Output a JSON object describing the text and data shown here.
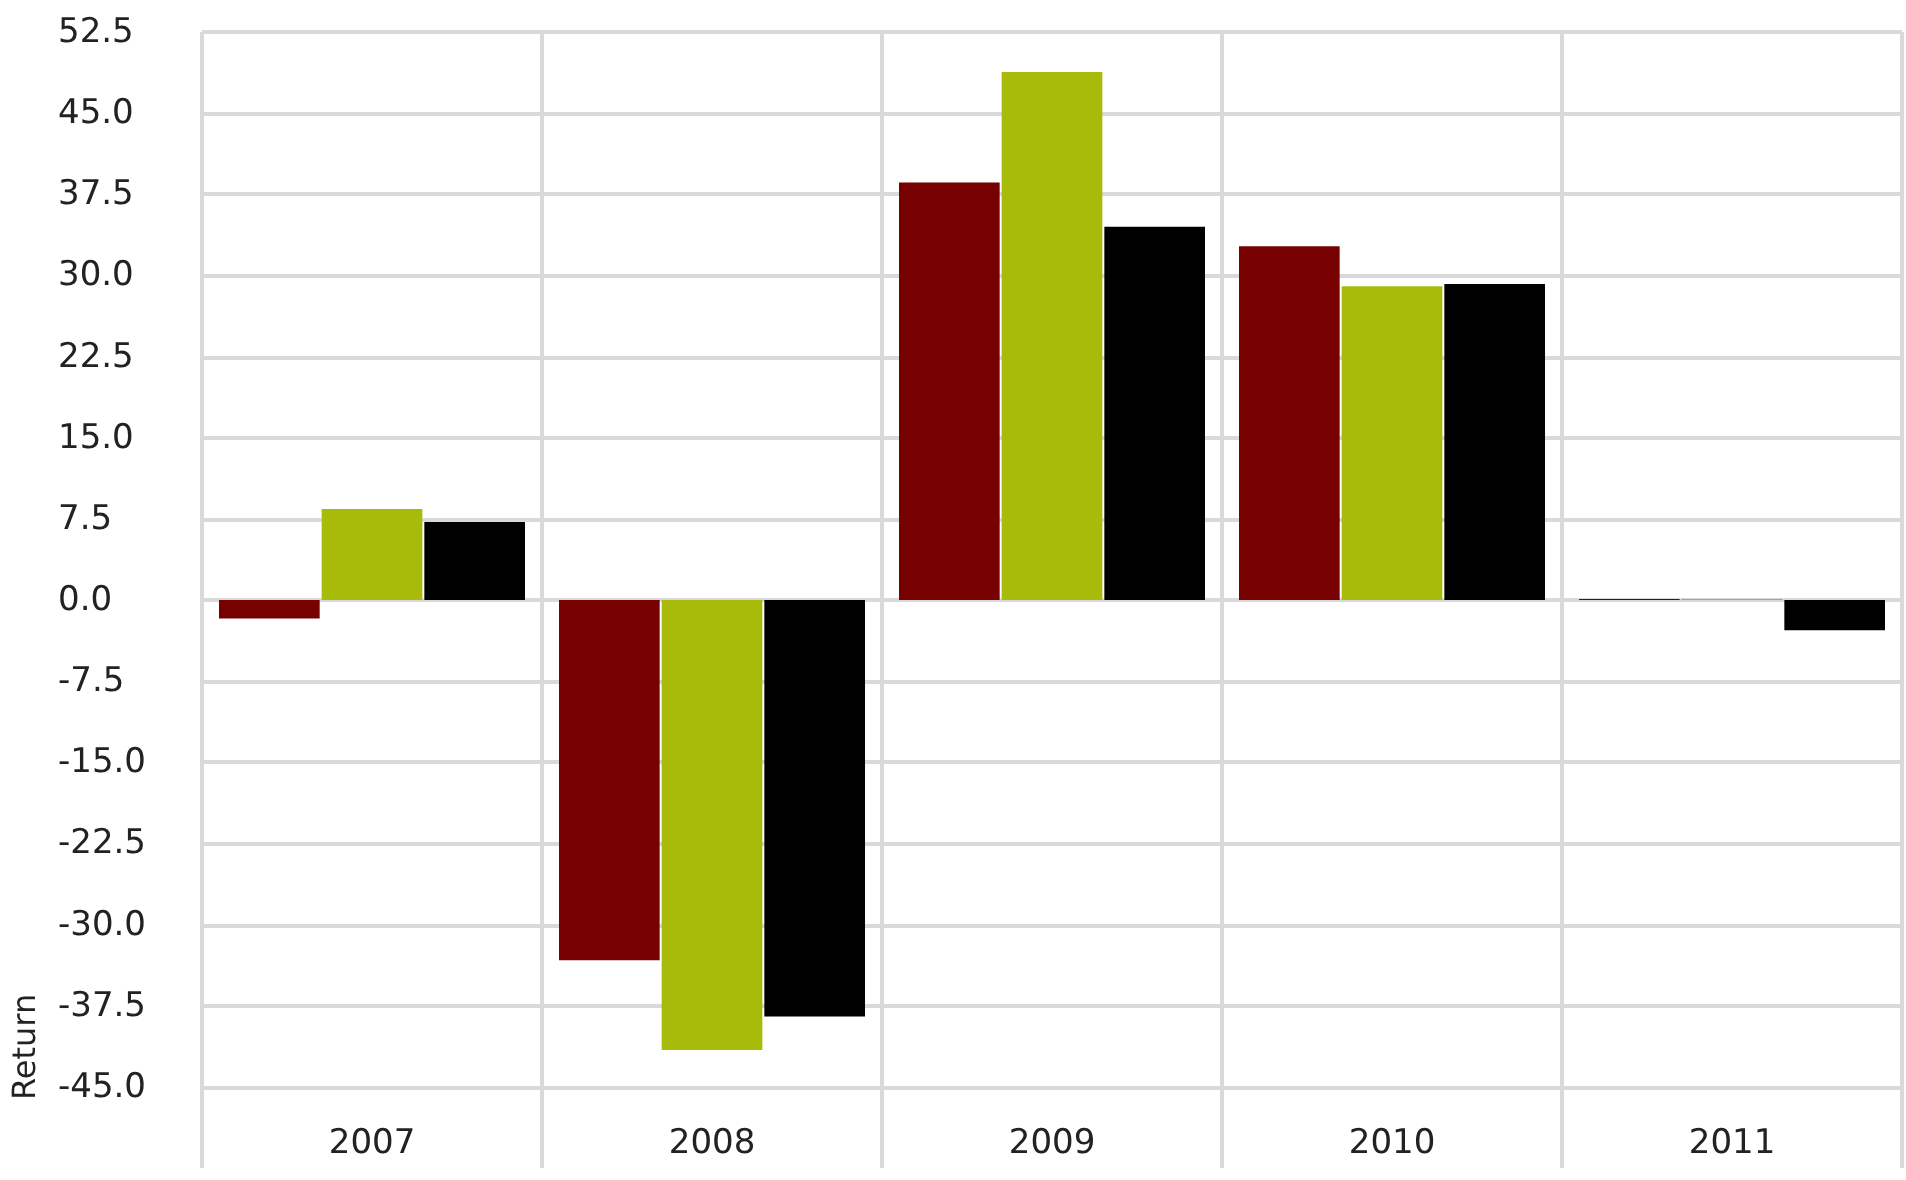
{
  "chart_data": {
    "type": "bar",
    "ylabel": "Return",
    "categories": [
      "2007",
      "2008",
      "2009",
      "2010",
      "2011"
    ],
    "series": [
      {
        "color": "#770000",
        "values": [
          -1.7,
          -33.3,
          38.6,
          32.7,
          0.1
        ]
      },
      {
        "color": "#a8bb0a",
        "values": [
          8.4,
          -41.6,
          48.8,
          29.0,
          0.1
        ]
      },
      {
        "color": "#000000",
        "values": [
          7.2,
          -38.5,
          34.5,
          29.2,
          -2.8
        ]
      }
    ],
    "ylim": [
      -52.5,
      52.5
    ],
    "yticks": [
      {
        "value": -45,
        "label": "-45.0"
      },
      -37.5,
      {
        "value": -30,
        "label": "-30.0"
      },
      -22.5,
      {
        "value": -15,
        "label": "-15.0"
      },
      -7.5,
      {
        "value": 0,
        "label": "0.0"
      },
      7.5,
      {
        "value": 15,
        "label": "15.0"
      },
      22.5,
      {
        "value": 30,
        "label": "30.0"
      },
      37.5,
      {
        "value": 45,
        "label": "45.0"
      },
      52.5
    ],
    "grid": true
  }
}
